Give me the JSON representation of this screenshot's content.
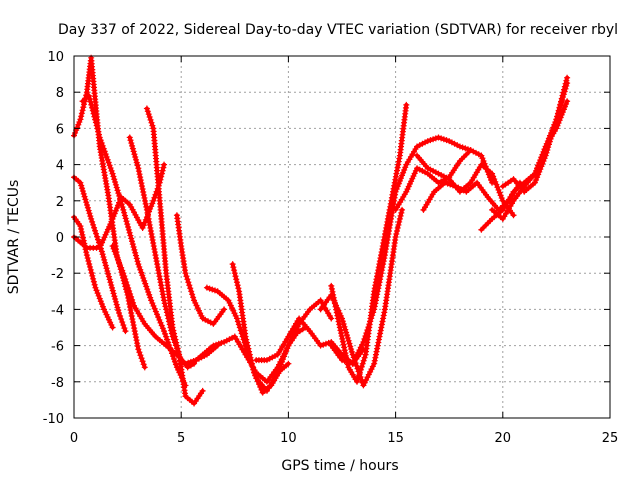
{
  "chart_data": {
    "type": "scatter",
    "title": "Day 337 of 2022, Sidereal Day-to-day VTEC variation (SDTVAR) for receiver rbyl",
    "xlabel": "GPS time / hours",
    "ylabel": "SDTVAR / TECUs",
    "xlim": [
      0,
      25
    ],
    "ylim": [
      -10,
      10
    ],
    "xticks": [
      0,
      5,
      10,
      15,
      20,
      25
    ],
    "yticks": [
      -10,
      -8,
      -6,
      -4,
      -2,
      0,
      2,
      4,
      6,
      8,
      10
    ],
    "grid": true,
    "marker": "+",
    "color": "#ff0000",
    "series": [
      {
        "name": "track-1",
        "x": [
          0.0,
          0.3,
          0.6,
          0.8,
          1.2,
          1.6,
          2.0,
          2.5,
          3.0,
          3.3
        ],
        "y": [
          5.6,
          6.5,
          8.0,
          9.9,
          5.0,
          2.3,
          -1.0,
          -3.2,
          -6.2,
          -7.2
        ]
      },
      {
        "name": "track-2",
        "x": [
          0.4,
          0.7,
          1.2,
          1.8,
          2.3,
          3.0,
          3.6,
          4.2,
          4.8,
          5.2
        ],
        "y": [
          7.5,
          7.8,
          5.5,
          3.5,
          1.5,
          -1.5,
          -3.5,
          -5.2,
          -7.2,
          -8.2
        ]
      },
      {
        "name": "track-3",
        "x": [
          0.0,
          0.3,
          0.8,
          1.3,
          1.7,
          2.1,
          2.4
        ],
        "y": [
          3.3,
          3.0,
          1.0,
          -0.8,
          -2.5,
          -4.2,
          -5.2
        ]
      },
      {
        "name": "track-4",
        "x": [
          0.0,
          0.3,
          0.6,
          1.0,
          1.4,
          1.8
        ],
        "y": [
          1.1,
          0.6,
          -1.0,
          -2.8,
          -4.0,
          -5.0
        ]
      },
      {
        "name": "track-5",
        "x": [
          0.0,
          0.6,
          1.2,
          1.8,
          2.2,
          2.6,
          3.2,
          3.7,
          4.0,
          4.2
        ],
        "y": [
          0.0,
          -0.6,
          -0.6,
          1.0,
          2.2,
          1.8,
          0.5,
          2.0,
          3.0,
          4.0
        ]
      },
      {
        "name": "track-6",
        "x": [
          2.6,
          3.0,
          3.4,
          3.8,
          4.2,
          4.6,
          5.0,
          5.3,
          5.6
        ],
        "y": [
          5.5,
          3.8,
          1.5,
          -1.0,
          -3.5,
          -5.5,
          -6.8,
          -7.2,
          -7.0
        ]
      },
      {
        "name": "track-7",
        "x": [
          3.4,
          3.7,
          4.0,
          4.3,
          4.6,
          4.9,
          5.2,
          5.6,
          6.0
        ],
        "y": [
          7.1,
          6.0,
          2.0,
          -2.0,
          -5.0,
          -6.5,
          -8.8,
          -9.2,
          -8.5
        ]
      },
      {
        "name": "track-8",
        "x": [
          1.8,
          2.3,
          2.8,
          3.3,
          3.8,
          4.3,
          4.8,
          5.2,
          5.7,
          6.2,
          6.7
        ],
        "y": [
          -0.5,
          -2.0,
          -3.8,
          -4.8,
          -5.5,
          -6.0,
          -6.5,
          -7.0,
          -6.8,
          -6.5,
          -6.0
        ]
      },
      {
        "name": "track-9",
        "x": [
          4.8,
          5.0,
          5.2,
          5.6,
          6.0,
          6.5,
          7.0
        ],
        "y": [
          1.2,
          -0.5,
          -2.0,
          -3.5,
          -4.5,
          -4.8,
          -4.0
        ]
      },
      {
        "name": "track-10",
        "x": [
          6.2,
          6.7,
          7.2,
          7.6,
          8.0,
          8.5,
          9.0,
          9.5,
          10.0,
          10.4,
          10.8
        ],
        "y": [
          -2.8,
          -3.0,
          -3.5,
          -4.5,
          -6.0,
          -7.8,
          -8.5,
          -7.5,
          -6.0,
          -5.3,
          -5.0
        ]
      },
      {
        "name": "track-11",
        "x": [
          5.5,
          6.0,
          6.5,
          7.0,
          7.5,
          8.0,
          8.5,
          9.0,
          9.5,
          10.0,
          10.5,
          11.0,
          11.5,
          12.0
        ],
        "y": [
          -7.0,
          -6.5,
          -6.0,
          -5.8,
          -5.5,
          -6.5,
          -7.5,
          -8.0,
          -7.2,
          -6.0,
          -4.8,
          -4.0,
          -3.5,
          -4.5
        ]
      },
      {
        "name": "track-12",
        "x": [
          7.4,
          7.7,
          8.0,
          8.4,
          8.8,
          9.2,
          9.6,
          10.0
        ],
        "y": [
          -1.5,
          -3.0,
          -5.5,
          -7.5,
          -8.6,
          -8.2,
          -7.4,
          -7.0
        ]
      },
      {
        "name": "track-13",
        "x": [
          8.5,
          9.0,
          9.5,
          10.0,
          10.5,
          11.0,
          11.5,
          12.0,
          12.5,
          13.0,
          13.5
        ],
        "y": [
          -6.8,
          -6.8,
          -6.5,
          -5.5,
          -4.5,
          -5.2,
          -6.0,
          -5.8,
          -6.5,
          -7.0,
          -6.2
        ]
      },
      {
        "name": "track-14",
        "x": [
          11.5,
          12.0,
          12.5,
          13.0,
          13.5,
          14.0,
          14.5,
          15.0,
          15.3
        ],
        "y": [
          -4.0,
          -3.2,
          -4.5,
          -6.5,
          -8.2,
          -7.0,
          -4.0,
          0.0,
          1.5
        ]
      },
      {
        "name": "track-15",
        "x": [
          12.0,
          12.4,
          12.8,
          13.2,
          13.6,
          14.0,
          14.4,
          14.8,
          15.2,
          15.5
        ],
        "y": [
          -2.7,
          -5.0,
          -7.2,
          -8.0,
          -6.5,
          -3.0,
          -0.5,
          2.0,
          4.5,
          7.3
        ]
      },
      {
        "name": "track-16",
        "x": [
          12.0,
          12.5,
          13.0,
          13.5,
          14.0,
          14.5,
          15.0,
          15.5,
          16.0,
          16.5,
          17.0,
          17.5,
          18.0,
          18.5
        ],
        "y": [
          -6.0,
          -6.8,
          -7.0,
          -5.8,
          -4.0,
          -1.0,
          2.5,
          4.0,
          5.0,
          5.3,
          5.5,
          5.3,
          5.0,
          4.8
        ]
      },
      {
        "name": "track-17",
        "x": [
          15.0,
          15.5,
          16.0,
          16.5,
          17.0,
          17.5,
          18.0,
          18.5,
          19.0,
          19.5
        ],
        "y": [
          1.5,
          2.5,
          3.8,
          3.5,
          3.0,
          3.3,
          4.2,
          4.8,
          4.5,
          3.0
        ]
      },
      {
        "name": "track-18",
        "x": [
          16.0,
          16.5,
          17.0,
          17.5,
          18.0,
          18.5,
          19.0,
          19.5,
          20.0,
          20.5
        ],
        "y": [
          4.5,
          3.8,
          3.5,
          3.2,
          2.5,
          3.0,
          4.0,
          3.5,
          2.0,
          1.2
        ]
      },
      {
        "name": "track-19",
        "x": [
          16.3,
          16.8,
          17.3,
          17.8,
          18.3,
          18.8,
          19.3,
          19.8,
          20.3,
          20.8
        ],
        "y": [
          1.5,
          2.5,
          3.0,
          2.8,
          2.5,
          3.0,
          2.2,
          1.5,
          2.0,
          3.0
        ]
      },
      {
        "name": "track-20",
        "x": [
          19.0,
          19.5,
          20.0,
          20.5,
          21.0,
          21.5,
          22.0,
          22.5,
          23.0
        ],
        "y": [
          0.4,
          1.0,
          1.5,
          2.5,
          3.0,
          3.5,
          5.0,
          6.5,
          8.8
        ]
      },
      {
        "name": "track-21",
        "x": [
          19.5,
          20.0,
          20.5,
          21.0,
          21.5,
          22.0,
          22.5,
          23.0
        ],
        "y": [
          1.5,
          1.0,
          2.0,
          2.8,
          3.5,
          5.0,
          6.0,
          7.5
        ]
      },
      {
        "name": "track-22",
        "x": [
          20.0,
          20.5,
          21.0,
          21.5,
          22.0,
          22.5,
          23.0
        ],
        "y": [
          2.8,
          3.2,
          2.5,
          3.0,
          4.5,
          6.5,
          8.5
        ]
      }
    ]
  }
}
